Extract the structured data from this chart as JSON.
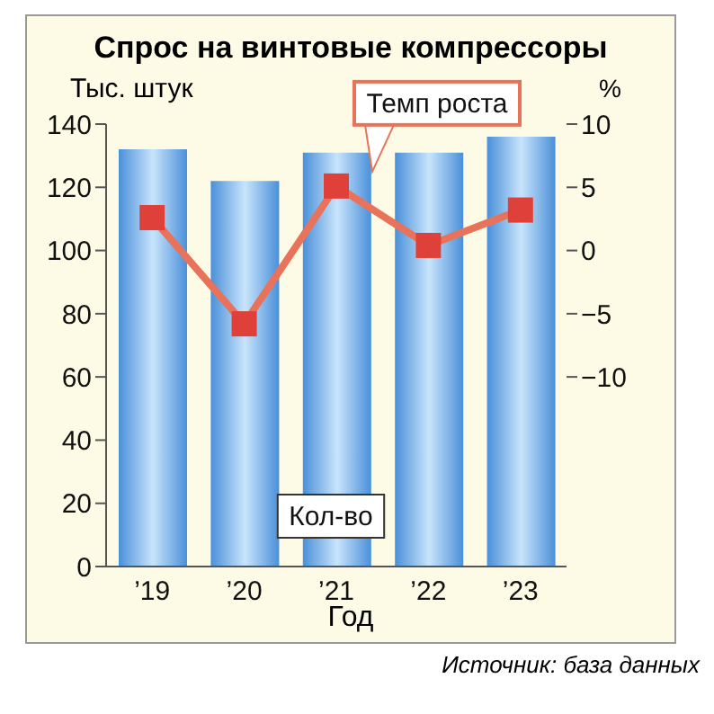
{
  "chart_data": {
    "type": "bar",
    "title": "Спрос на винтовые компрессоры",
    "xlabel": "Год",
    "ylabel": "Тыс. штук",
    "y2label": "%",
    "categories": [
      "’19",
      "’20",
      "’21",
      "’22",
      "’23"
    ],
    "series": [
      {
        "name": "Кол-во",
        "color": "#4a90d9",
        "values": [
          132,
          122,
          131,
          131,
          136
        ]
      },
      {
        "name": "Темп роста",
        "type": "line",
        "axis": "y2",
        "color": "#e8735a",
        "marker": "square",
        "values": [
          2.6,
          -5.8,
          5.1,
          0.4,
          3.2
        ]
      }
    ],
    "ylim": [
      0,
      140
    ],
    "yticks": [
      0,
      20,
      40,
      60,
      80,
      100,
      120,
      140
    ],
    "y2lim": [
      -25,
      10
    ],
    "y2ticks": [
      -10,
      -5,
      0,
      5,
      10
    ],
    "grid": false,
    "legend": false,
    "annotations": [
      "Источник: база данных"
    ]
  }
}
